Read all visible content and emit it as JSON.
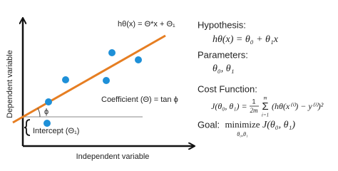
{
  "diagram": {
    "hypothesis_label": "hθ(x) = Θ*x + Θ₁",
    "y_axis_label": "Dependent variable",
    "x_axis_label": "Independent variable",
    "slope_label": "Coefficient (Θ) = tan ϕ",
    "angle_label": "ϕ",
    "intercept_label": "Intercept (Θ₁)"
  },
  "panel": {
    "hypothesis": {
      "title": "Hypothesis:",
      "formula": "hθ(x) = θ₀ + θ₁x"
    },
    "parameters": {
      "title": "Parameters:",
      "formula": "θ₀, θ₁"
    },
    "cost": {
      "title": "Cost Function:",
      "lhs": "J(θ₀, θ₁) =",
      "numerator": "1",
      "denominator": "2m",
      "sum": "Σ",
      "sum_top": "m",
      "sum_bottom": "i=1",
      "body": "(hθ(x⁽ⁱ⁾) − y⁽ⁱ⁾)²"
    },
    "goal": {
      "title": "Goal:",
      "operator": "minimize",
      "operator_sub": "θ₀,θ₁",
      "formula": "J(θ₀, θ₁)"
    }
  }
}
